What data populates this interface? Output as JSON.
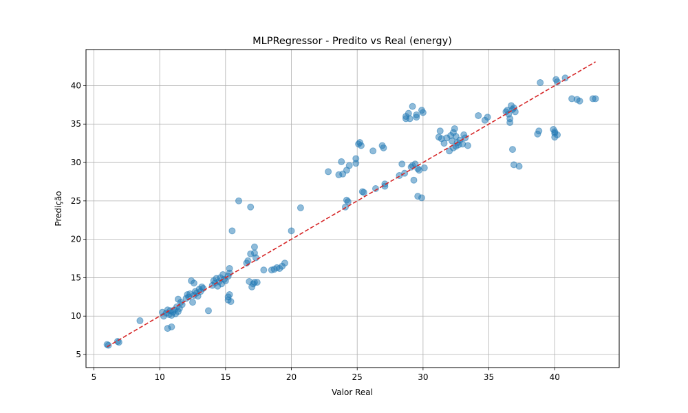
{
  "chart_data": {
    "type": "scatter",
    "title": "MLPRegressor - Predito vs Real (energy)",
    "xlabel": "Valor Real",
    "ylabel": "Predição",
    "xlim": [
      4.4,
      44.9
    ],
    "ylim": [
      3.3,
      44.7
    ],
    "xticks": [
      5,
      10,
      15,
      20,
      25,
      30,
      35,
      40
    ],
    "yticks": [
      5,
      10,
      15,
      20,
      25,
      30,
      35,
      40
    ],
    "grid": true,
    "point_color": "#1f77b4",
    "point_opacity": 0.5,
    "reference_line": {
      "x": [
        6.0,
        43.1
      ],
      "y": [
        6.0,
        43.1
      ],
      "color": "#d62728",
      "style": "dashed"
    },
    "points": [
      [
        6.0,
        6.3
      ],
      [
        6.1,
        6.2
      ],
      [
        6.8,
        6.7
      ],
      [
        6.9,
        6.6
      ],
      [
        8.5,
        9.4
      ],
      [
        10.2,
        10.5
      ],
      [
        10.3,
        10.0
      ],
      [
        10.5,
        10.4
      ],
      [
        10.6,
        10.8
      ],
      [
        10.7,
        10.2
      ],
      [
        10.8,
        10.7
      ],
      [
        10.9,
        10.1
      ],
      [
        11.0,
        10.5
      ],
      [
        11.1,
        10.8
      ],
      [
        11.2,
        10.3
      ],
      [
        11.3,
        11.2
      ],
      [
        11.4,
        10.6
      ],
      [
        11.5,
        11.0
      ],
      [
        11.6,
        11.8
      ],
      [
        11.4,
        12.2
      ],
      [
        11.7,
        11.5
      ],
      [
        10.6,
        8.4
      ],
      [
        10.9,
        8.6
      ],
      [
        12.0,
        12.3
      ],
      [
        12.1,
        12.8
      ],
      [
        12.2,
        12.5
      ],
      [
        12.3,
        12.9
      ],
      [
        12.5,
        11.8
      ],
      [
        12.6,
        12.7
      ],
      [
        12.7,
        13.2
      ],
      [
        12.8,
        13.0
      ],
      [
        12.9,
        12.6
      ],
      [
        13.0,
        13.5
      ],
      [
        13.1,
        13.2
      ],
      [
        13.2,
        13.8
      ],
      [
        13.3,
        13.6
      ],
      [
        12.4,
        14.6
      ],
      [
        12.6,
        14.3
      ],
      [
        13.7,
        10.7
      ],
      [
        14.0,
        14.0
      ],
      [
        14.1,
        14.6
      ],
      [
        14.2,
        14.3
      ],
      [
        14.3,
        14.9
      ],
      [
        14.4,
        13.9
      ],
      [
        14.5,
        14.5
      ],
      [
        14.6,
        15.0
      ],
      [
        14.7,
        14.2
      ],
      [
        14.8,
        15.4
      ],
      [
        14.9,
        14.8
      ],
      [
        15.0,
        14.6
      ],
      [
        15.2,
        15.2
      ],
      [
        15.3,
        15.6
      ],
      [
        15.3,
        16.2
      ],
      [
        15.2,
        12.1
      ],
      [
        15.3,
        12.8
      ],
      [
        15.4,
        11.9
      ],
      [
        15.2,
        12.5
      ],
      [
        16.0,
        25.0
      ],
      [
        16.9,
        24.2
      ],
      [
        15.5,
        21.1
      ],
      [
        16.6,
        16.9
      ],
      [
        16.7,
        17.2
      ],
      [
        16.9,
        18.1
      ],
      [
        17.2,
        18.2
      ],
      [
        17.3,
        17.6
      ],
      [
        17.2,
        19.0
      ],
      [
        16.8,
        14.5
      ],
      [
        17.0,
        13.8
      ],
      [
        17.1,
        14.2
      ],
      [
        17.2,
        14.4
      ],
      [
        17.4,
        14.4
      ],
      [
        17.9,
        16.0
      ],
      [
        18.5,
        16.0
      ],
      [
        18.7,
        16.1
      ],
      [
        18.9,
        16.3
      ],
      [
        19.1,
        16.2
      ],
      [
        19.3,
        16.5
      ],
      [
        19.5,
        16.9
      ],
      [
        20.0,
        21.1
      ],
      [
        20.7,
        24.1
      ],
      [
        22.8,
        28.8
      ],
      [
        23.6,
        28.4
      ],
      [
        23.8,
        30.1
      ],
      [
        23.9,
        28.5
      ],
      [
        24.1,
        24.2
      ],
      [
        24.2,
        25.1
      ],
      [
        24.3,
        24.9
      ],
      [
        24.2,
        29.0
      ],
      [
        24.4,
        29.6
      ],
      [
        24.9,
        29.9
      ],
      [
        24.9,
        30.5
      ],
      [
        25.1,
        32.4
      ],
      [
        25.2,
        32.6
      ],
      [
        25.3,
        32.2
      ],
      [
        25.4,
        26.2
      ],
      [
        25.5,
        26.1
      ],
      [
        26.2,
        31.5
      ],
      [
        26.4,
        26.6
      ],
      [
        26.9,
        32.2
      ],
      [
        27.0,
        31.9
      ],
      [
        27.1,
        26.9
      ],
      [
        27.1,
        27.2
      ],
      [
        28.2,
        28.3
      ],
      [
        28.4,
        29.8
      ],
      [
        28.6,
        28.6
      ],
      [
        28.7,
        36.0
      ],
      [
        28.7,
        35.7
      ],
      [
        28.9,
        36.4
      ],
      [
        29.0,
        35.7
      ],
      [
        29.1,
        29.4
      ],
      [
        29.2,
        29.6
      ],
      [
        29.2,
        37.3
      ],
      [
        29.3,
        27.7
      ],
      [
        29.4,
        29.8
      ],
      [
        29.5,
        36.2
      ],
      [
        29.5,
        35.9
      ],
      [
        29.6,
        29.2
      ],
      [
        29.7,
        29.0
      ],
      [
        29.6,
        25.6
      ],
      [
        29.9,
        25.4
      ],
      [
        29.9,
        36.8
      ],
      [
        30.0,
        36.5
      ],
      [
        30.1,
        29.3
      ],
      [
        31.2,
        33.3
      ],
      [
        31.3,
        34.1
      ],
      [
        31.4,
        33.1
      ],
      [
        31.6,
        32.5
      ],
      [
        31.8,
        33.2
      ],
      [
        32.0,
        31.5
      ],
      [
        32.1,
        33.5
      ],
      [
        32.2,
        32.8
      ],
      [
        32.3,
        33.9
      ],
      [
        32.4,
        34.4
      ],
      [
        32.3,
        31.9
      ],
      [
        32.5,
        32.1
      ],
      [
        32.5,
        33.4
      ],
      [
        32.6,
        32.6
      ],
      [
        32.7,
        32.3
      ],
      [
        32.8,
        32.9
      ],
      [
        33.0,
        32.4
      ],
      [
        33.1,
        33.6
      ],
      [
        33.2,
        33.2
      ],
      [
        33.4,
        32.2
      ],
      [
        34.2,
        36.1
      ],
      [
        34.7,
        35.5
      ],
      [
        34.9,
        35.9
      ],
      [
        36.3,
        36.6
      ],
      [
        36.4,
        36.8
      ],
      [
        36.5,
        36.3
      ],
      [
        36.6,
        35.2
      ],
      [
        36.6,
        35.7
      ],
      [
        36.7,
        37.4
      ],
      [
        36.8,
        36.9
      ],
      [
        36.9,
        37.1
      ],
      [
        37.0,
        36.6
      ],
      [
        36.8,
        31.7
      ],
      [
        36.9,
        29.7
      ],
      [
        37.3,
        29.5
      ],
      [
        38.7,
        33.7
      ],
      [
        38.8,
        34.1
      ],
      [
        38.9,
        40.4
      ],
      [
        39.9,
        34.3
      ],
      [
        40.0,
        34.0
      ],
      [
        40.0,
        33.8
      ],
      [
        40.0,
        33.3
      ],
      [
        40.2,
        33.6
      ],
      [
        40.1,
        40.8
      ],
      [
        40.2,
        40.5
      ],
      [
        40.8,
        41.0
      ],
      [
        41.3,
        38.3
      ],
      [
        41.7,
        38.2
      ],
      [
        41.9,
        38.0
      ],
      [
        42.9,
        38.3
      ],
      [
        43.1,
        38.3
      ]
    ]
  }
}
